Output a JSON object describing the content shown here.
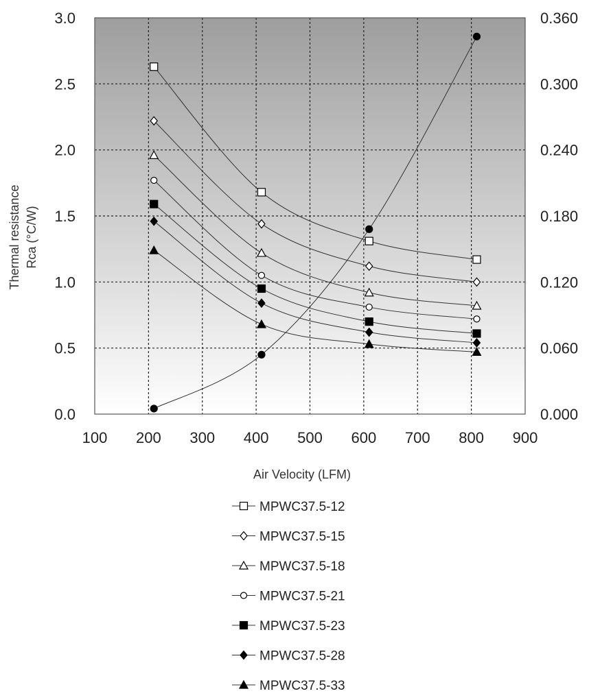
{
  "chart_data": {
    "type": "line",
    "xlabel": "Air Velocity (LFM)",
    "ylabel_line1": "Thermal resistance",
    "ylabel_line2": "Rca (°C/W)",
    "xlim": [
      100,
      900
    ],
    "xticks": [
      "100",
      "200",
      "300",
      "400",
      "500",
      "600",
      "700",
      "800",
      "900"
    ],
    "ylim": [
      0,
      3.0
    ],
    "yticks": [
      "0.0",
      "0.5",
      "1.0",
      "1.5",
      "2.0",
      "2.5",
      "3.0"
    ],
    "y2lim": [
      0,
      0.36
    ],
    "y2ticks": [
      "0.000",
      "0.060",
      "0.120",
      "0.180",
      "0.240",
      "0.300",
      "0.360"
    ],
    "grid": true,
    "background": {
      "top": "#9e9e9e",
      "bottom": "#ffffff"
    },
    "series": [
      {
        "name": "MPWC37.5-12",
        "marker": "square-open",
        "x": [
          210,
          410,
          610,
          810
        ],
        "y": [
          2.63,
          1.68,
          1.31,
          1.17
        ]
      },
      {
        "name": "MPWC37.5-15",
        "marker": "diamond-open",
        "x": [
          210,
          410,
          610,
          810
        ],
        "y": [
          2.22,
          1.44,
          1.12,
          1.0
        ]
      },
      {
        "name": "MPWC37.5-18",
        "marker": "triangle-open",
        "x": [
          210,
          410,
          610,
          810
        ],
        "y": [
          1.96,
          1.22,
          0.92,
          0.82
        ]
      },
      {
        "name": "MPWC37.5-21",
        "marker": "circle-open",
        "x": [
          210,
          410,
          610,
          810
        ],
        "y": [
          1.77,
          1.05,
          0.81,
          0.72
        ]
      },
      {
        "name": "MPWC37.5-23",
        "marker": "square-filled",
        "x": [
          210,
          410,
          610,
          810
        ],
        "y": [
          1.59,
          0.95,
          0.7,
          0.61
        ]
      },
      {
        "name": "MPWC37.5-28",
        "marker": "diamond-filled",
        "x": [
          210,
          410,
          610,
          810
        ],
        "y": [
          1.46,
          0.84,
          0.62,
          0.54
        ]
      },
      {
        "name": "MPWC37.5-33",
        "marker": "triangle-filled",
        "x": [
          210,
          410,
          610,
          810
        ],
        "y": [
          1.24,
          0.68,
          0.53,
          0.47
        ]
      }
    ],
    "secondary_series": {
      "marker": "circle-filled",
      "x": [
        210,
        410,
        610,
        810
      ],
      "y": [
        0.005,
        0.054,
        0.168,
        0.343
      ]
    }
  }
}
